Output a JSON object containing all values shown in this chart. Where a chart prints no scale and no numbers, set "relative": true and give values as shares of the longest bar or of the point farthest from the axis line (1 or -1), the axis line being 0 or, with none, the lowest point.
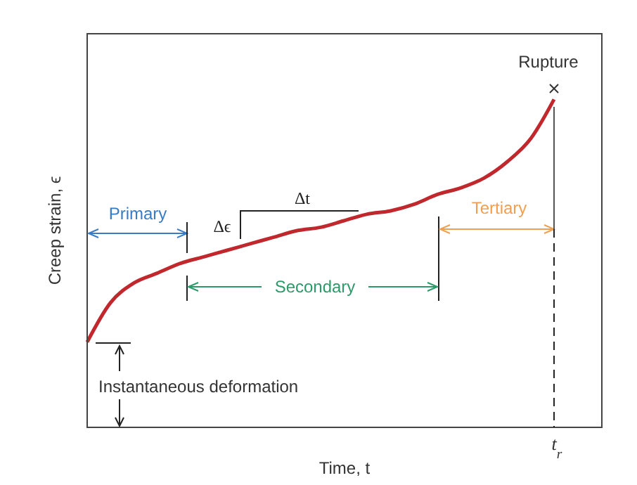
{
  "chart_data": {
    "type": "line",
    "relative": true,
    "xlabel": "Time, t",
    "ylabel": "Creep strain, ϵ",
    "categories": [
      null,
      null,
      null,
      null,
      null,
      null,
      null,
      null,
      null,
      null,
      null,
      null,
      null,
      null,
      null,
      null,
      null,
      null,
      null,
      null,
      null
    ],
    "series": [
      {
        "color": "#c0282d",
        "values": [
          0.26,
          0.38,
          0.44,
          0.47,
          0.5,
          0.52,
          0.54,
          0.56,
          0.58,
          0.6,
          0.61,
          0.63,
          0.65,
          0.66,
          0.68,
          0.71,
          0.73,
          0.76,
          0.81,
          0.88,
          1
        ]
      }
    ],
    "annotations": [
      "Primary",
      "Δϵ",
      "Δt",
      "Secondary",
      "Tertiary",
      "Rupture",
      "Instantaneous deformation",
      "t$_{r}$"
    ],
    "grid": false,
    "legend": false,
    "marker": "none",
    "line_style": "solid"
  }
}
